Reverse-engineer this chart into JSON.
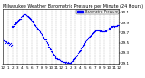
{
  "title": "Milwaukee Weather Barometric Pressure per Minute (24 Hours)",
  "bg_color": "#ffffff",
  "plot_bg_color": "#ffffff",
  "dot_color": "#0000ff",
  "legend_color": "#0000ff",
  "grid_color": "#b0b0b0",
  "y_min": 29.08,
  "y_max": 30.16,
  "y_ticks": [
    29.1,
    29.3,
    29.5,
    29.7,
    29.9,
    30.1
  ],
  "x_min": 0,
  "x_max": 1440,
  "x_ticks": [
    0,
    60,
    120,
    180,
    240,
    300,
    360,
    420,
    480,
    540,
    600,
    660,
    720,
    780,
    840,
    900,
    960,
    1020,
    1080,
    1140,
    1200,
    1260,
    1320,
    1380,
    1440
  ],
  "x_tick_labels": [
    "12",
    "1",
    "2",
    "3",
    "4",
    "5",
    "6",
    "7",
    "8",
    "9",
    "10",
    "11",
    "12",
    "1",
    "2",
    "3",
    "4",
    "5",
    "6",
    "7",
    "8",
    "9",
    "10",
    "11",
    "12"
  ],
  "font_size": 4,
  "dot_size": 0.8,
  "legend_label": "Barometric Pressure",
  "curve_segments": [
    {
      "t_start": 0,
      "t_end": 110,
      "p_start": 29.55,
      "p_end": 29.46,
      "noise": 0.015
    },
    {
      "t_start": 110,
      "t_end": 115,
      "p_start": 29.46,
      "p_end": 29.82,
      "noise": 0.005
    },
    {
      "t_start": 115,
      "t_end": 270,
      "p_start": 29.82,
      "p_end": 30.07,
      "noise": 0.008
    },
    {
      "t_start": 270,
      "t_end": 330,
      "p_start": 30.07,
      "p_end": 30.0,
      "noise": 0.005
    },
    {
      "t_start": 330,
      "t_end": 530,
      "p_start": 30.0,
      "p_end": 29.56,
      "noise": 0.008
    },
    {
      "t_start": 530,
      "t_end": 600,
      "p_start": 29.56,
      "p_end": 29.34,
      "noise": 0.008
    },
    {
      "t_start": 600,
      "t_end": 660,
      "p_start": 29.34,
      "p_end": 29.2,
      "noise": 0.006
    },
    {
      "t_start": 660,
      "t_end": 760,
      "p_start": 29.2,
      "p_end": 29.12,
      "noise": 0.005
    },
    {
      "t_start": 760,
      "t_end": 830,
      "p_start": 29.12,
      "p_end": 29.1,
      "noise": 0.005
    },
    {
      "t_start": 830,
      "t_end": 870,
      "p_start": 29.1,
      "p_end": 29.14,
      "noise": 0.005
    },
    {
      "t_start": 870,
      "t_end": 960,
      "p_start": 29.14,
      "p_end": 29.35,
      "noise": 0.006
    },
    {
      "t_start": 960,
      "t_end": 1060,
      "p_start": 29.35,
      "p_end": 29.6,
      "noise": 0.006
    },
    {
      "t_start": 1060,
      "t_end": 1160,
      "p_start": 29.6,
      "p_end": 29.75,
      "noise": 0.006
    },
    {
      "t_start": 1160,
      "t_end": 1260,
      "p_start": 29.75,
      "p_end": 29.72,
      "noise": 0.006
    },
    {
      "t_start": 1260,
      "t_end": 1360,
      "p_start": 29.72,
      "p_end": 29.82,
      "noise": 0.006
    },
    {
      "t_start": 1360,
      "t_end": 1440,
      "p_start": 29.82,
      "p_end": 29.85,
      "noise": 0.006
    }
  ]
}
